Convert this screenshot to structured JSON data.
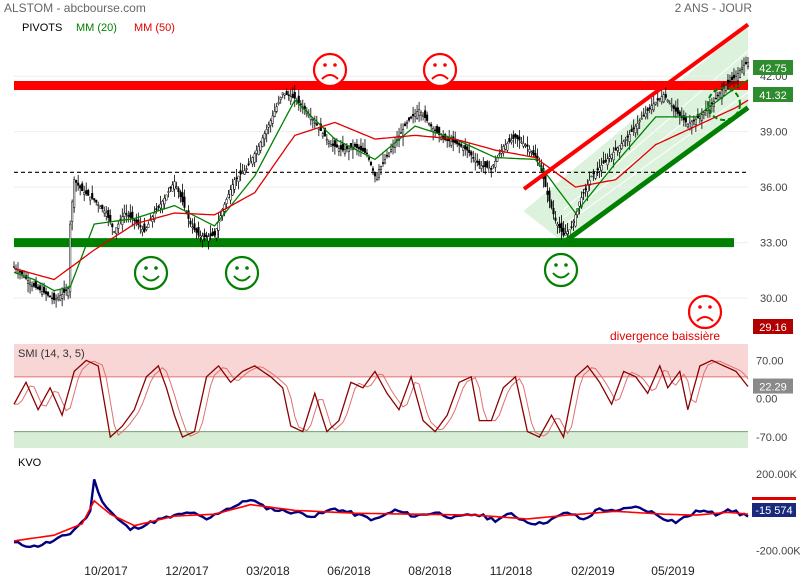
{
  "header": {
    "title": "ALSTOM - abcbourse.com",
    "period": "2 ANS - JOUR",
    "legend_pivots": "PIVOTS",
    "legend_mm20": "MM (20)",
    "legend_mm50": "MM (50)"
  },
  "colors": {
    "support": "#008000",
    "resistance": "#ff0000",
    "mm20": "#008000",
    "mm50": "#e00000",
    "kvo_line": "#000080",
    "smi_line": "#8b0000"
  },
  "chart_data": [
    {
      "type": "candlestick",
      "name": "price",
      "ylim": [
        28.0,
        44.5
      ],
      "yticks": [
        30.0,
        33.0,
        36.0,
        39.0,
        42.0
      ],
      "ytick_labels": [
        "30.00",
        "33.00",
        "36.00",
        "39.00",
        "42.00"
      ],
      "xtick_labels": [
        "10/2017",
        "12/2017",
        "03/2018",
        "06/2018",
        "08/2018",
        "11/2018",
        "02/2019",
        "05/2019"
      ],
      "price_path": [
        [
          0,
          31.7
        ],
        [
          4,
          31.3
        ],
        [
          9,
          30.7
        ],
        [
          15,
          30.3
        ],
        [
          20,
          29.9
        ],
        [
          24,
          30.2
        ],
        [
          27,
          30.5
        ],
        [
          28,
          34.0
        ],
        [
          30,
          36.4
        ],
        [
          34,
          35.8
        ],
        [
          40,
          35.3
        ],
        [
          46,
          34.6
        ],
        [
          50,
          33.6
        ],
        [
          55,
          34.6
        ],
        [
          60,
          34.2
        ],
        [
          65,
          33.6
        ],
        [
          70,
          34.6
        ],
        [
          75,
          35.4
        ],
        [
          80,
          36.3
        ],
        [
          84,
          35.2
        ],
        [
          88,
          34.0
        ],
        [
          92,
          33.4
        ],
        [
          96,
          33.3
        ],
        [
          100,
          33.4
        ],
        [
          104,
          34.8
        ],
        [
          110,
          36.4
        ],
        [
          116,
          37.0
        ],
        [
          122,
          38.2
        ],
        [
          128,
          39.6
        ],
        [
          134,
          41.1
        ],
        [
          140,
          40.8
        ],
        [
          146,
          40.1
        ],
        [
          152,
          39.2
        ],
        [
          158,
          38.3
        ],
        [
          164,
          38.0
        ],
        [
          170,
          38.2
        ],
        [
          176,
          37.8
        ],
        [
          180,
          36.6
        ],
        [
          184,
          37.3
        ],
        [
          190,
          38.4
        ],
        [
          196,
          39.5
        ],
        [
          202,
          40.2
        ],
        [
          208,
          39.3
        ],
        [
          214,
          38.6
        ],
        [
          220,
          38.4
        ],
        [
          226,
          38.0
        ],
        [
          232,
          37.2
        ],
        [
          238,
          37.0
        ],
        [
          244,
          38.2
        ],
        [
          250,
          38.7
        ],
        [
          256,
          38.2
        ],
        [
          262,
          37.3
        ],
        [
          266,
          35.6
        ],
        [
          270,
          34.2
        ],
        [
          274,
          33.4
        ],
        [
          278,
          33.8
        ],
        [
          282,
          35.2
        ],
        [
          288,
          36.6
        ],
        [
          294,
          37.3
        ],
        [
          300,
          38.0
        ],
        [
          306,
          38.7
        ],
        [
          312,
          39.6
        ],
        [
          318,
          40.4
        ],
        [
          324,
          41.0
        ],
        [
          330,
          40.1
        ],
        [
          336,
          39.4
        ],
        [
          342,
          39.8
        ],
        [
          348,
          40.5
        ],
        [
          354,
          41.4
        ],
        [
          360,
          42.0
        ],
        [
          364,
          42.6
        ],
        [
          366,
          42.75
        ]
      ],
      "mm20_path": [
        [
          0,
          31.4
        ],
        [
          10,
          31.0
        ],
        [
          20,
          30.4
        ],
        [
          28,
          30.6
        ],
        [
          40,
          34.0
        ],
        [
          60,
          34.3
        ],
        [
          80,
          35.0
        ],
        [
          100,
          33.9
        ],
        [
          120,
          36.6
        ],
        [
          140,
          40.7
        ],
        [
          160,
          38.6
        ],
        [
          180,
          37.5
        ],
        [
          200,
          39.3
        ],
        [
          220,
          38.6
        ],
        [
          240,
          37.6
        ],
        [
          260,
          37.5
        ],
        [
          280,
          34.6
        ],
        [
          300,
          37.3
        ],
        [
          320,
          39.8
        ],
        [
          340,
          39.8
        ],
        [
          360,
          41.4
        ],
        [
          366,
          41.8
        ]
      ],
      "mm50_path": [
        [
          0,
          31.6
        ],
        [
          20,
          31.0
        ],
        [
          40,
          32.6
        ],
        [
          60,
          34.0
        ],
        [
          80,
          34.6
        ],
        [
          100,
          34.5
        ],
        [
          120,
          35.7
        ],
        [
          140,
          38.8
        ],
        [
          160,
          39.5
        ],
        [
          180,
          38.6
        ],
        [
          200,
          38.8
        ],
        [
          220,
          38.6
        ],
        [
          240,
          38.0
        ],
        [
          260,
          37.6
        ],
        [
          280,
          36.0
        ],
        [
          300,
          36.4
        ],
        [
          320,
          38.3
        ],
        [
          340,
          39.3
        ],
        [
          360,
          40.3
        ],
        [
          366,
          40.7
        ]
      ],
      "support_level": 33.0,
      "resistance_level": 41.5,
      "pivot_level": 36.8,
      "channel_lower": [
        [
          274,
          33.0
        ],
        [
          366,
          40.3
        ]
      ],
      "channel_upper": [
        [
          254,
          34.7
        ],
        [
          366,
          44.8
        ]
      ],
      "last_price": "42.75",
      "resistance_label": "41.32",
      "divergence_price": "29.16",
      "annotation": "divergence baissière",
      "sad_faces_count": 3,
      "happy_faces_count": 3
    },
    {
      "type": "line",
      "name": "SMI (14, 3, 5)",
      "ylim": [
        -90,
        100
      ],
      "yticks": [
        70,
        0,
        -70
      ],
      "ytick_labels": [
        "70.00",
        "0.00",
        "-70.00"
      ],
      "zone_upper": 40,
      "zone_lower": -60,
      "last_value": "22.29",
      "path": [
        [
          0,
          -10
        ],
        [
          6,
          30
        ],
        [
          12,
          -20
        ],
        [
          18,
          20
        ],
        [
          24,
          -30
        ],
        [
          30,
          50
        ],
        [
          36,
          70
        ],
        [
          42,
          60
        ],
        [
          48,
          -70
        ],
        [
          54,
          -50
        ],
        [
          60,
          -20
        ],
        [
          66,
          40
        ],
        [
          72,
          60
        ],
        [
          76,
          20
        ],
        [
          80,
          -30
        ],
        [
          84,
          -70
        ],
        [
          90,
          -60
        ],
        [
          96,
          40
        ],
        [
          102,
          60
        ],
        [
          108,
          30
        ],
        [
          114,
          50
        ],
        [
          120,
          60
        ],
        [
          128,
          40
        ],
        [
          134,
          20
        ],
        [
          138,
          -50
        ],
        [
          144,
          -60
        ],
        [
          150,
          10
        ],
        [
          156,
          -60
        ],
        [
          162,
          -40
        ],
        [
          168,
          30
        ],
        [
          174,
          20
        ],
        [
          180,
          50
        ],
        [
          186,
          10
        ],
        [
          192,
          -20
        ],
        [
          198,
          40
        ],
        [
          204,
          -40
        ],
        [
          210,
          -60
        ],
        [
          216,
          -30
        ],
        [
          222,
          30
        ],
        [
          228,
          40
        ],
        [
          232,
          -40
        ],
        [
          238,
          -40
        ],
        [
          244,
          20
        ],
        [
          250,
          40
        ],
        [
          256,
          -60
        ],
        [
          262,
          -70
        ],
        [
          268,
          -30
        ],
        [
          274,
          -70
        ],
        [
          280,
          40
        ],
        [
          286,
          60
        ],
        [
          292,
          30
        ],
        [
          298,
          -10
        ],
        [
          304,
          50
        ],
        [
          310,
          40
        ],
        [
          316,
          10
        ],
        [
          322,
          60
        ],
        [
          326,
          20
        ],
        [
          332,
          50
        ],
        [
          336,
          -20
        ],
        [
          342,
          60
        ],
        [
          348,
          70
        ],
        [
          354,
          60
        ],
        [
          360,
          50
        ],
        [
          366,
          22.29
        ]
      ]
    },
    {
      "type": "line",
      "name": "KVO",
      "ylim": [
        -250000,
        300000
      ],
      "yticks": [
        200000,
        -200000
      ],
      "ytick_labels": [
        "200.00K",
        "-200.00K"
      ],
      "last_value": "-15 574",
      "path": [
        [
          0,
          -160000
        ],
        [
          10,
          -180000
        ],
        [
          20,
          -150000
        ],
        [
          28,
          -110000
        ],
        [
          34,
          -50000
        ],
        [
          38,
          0
        ],
        [
          40,
          180000
        ],
        [
          42,
          100000
        ],
        [
          46,
          30000
        ],
        [
          52,
          -40000
        ],
        [
          58,
          -90000
        ],
        [
          64,
          -70000
        ],
        [
          72,
          -40000
        ],
        [
          80,
          -20000
        ],
        [
          88,
          0
        ],
        [
          96,
          -40000
        ],
        [
          104,
          10000
        ],
        [
          112,
          40000
        ],
        [
          118,
          70000
        ],
        [
          124,
          30000
        ],
        [
          132,
          10000
        ],
        [
          140,
          0
        ],
        [
          150,
          -20000
        ],
        [
          160,
          20000
        ],
        [
          170,
          -10000
        ],
        [
          180,
          -40000
        ],
        [
          190,
          10000
        ],
        [
          200,
          -20000
        ],
        [
          210,
          0
        ],
        [
          220,
          -30000
        ],
        [
          230,
          -10000
        ],
        [
          240,
          -40000
        ],
        [
          248,
          -10000
        ],
        [
          256,
          -50000
        ],
        [
          262,
          -60000
        ],
        [
          270,
          -30000
        ],
        [
          276,
          0
        ],
        [
          284,
          -40000
        ],
        [
          292,
          20000
        ],
        [
          300,
          0
        ],
        [
          308,
          30000
        ],
        [
          316,
          10000
        ],
        [
          324,
          -30000
        ],
        [
          330,
          -50000
        ],
        [
          336,
          -20000
        ],
        [
          342,
          10000
        ],
        [
          350,
          -10000
        ],
        [
          356,
          20000
        ],
        [
          362,
          -10000
        ],
        [
          366,
          -15574
        ]
      ],
      "signal_path": [
        [
          0,
          -150000
        ],
        [
          20,
          -120000
        ],
        [
          34,
          -60000
        ],
        [
          40,
          60000
        ],
        [
          48,
          -10000
        ],
        [
          60,
          -70000
        ],
        [
          80,
          -20000
        ],
        [
          100,
          -10000
        ],
        [
          118,
          40000
        ],
        [
          140,
          10000
        ],
        [
          170,
          -5000
        ],
        [
          200,
          -10000
        ],
        [
          230,
          -15000
        ],
        [
          256,
          -35000
        ],
        [
          276,
          -15000
        ],
        [
          300,
          5000
        ],
        [
          324,
          -10000
        ],
        [
          340,
          -15000
        ],
        [
          356,
          0
        ],
        [
          366,
          -10000
        ]
      ]
    }
  ]
}
